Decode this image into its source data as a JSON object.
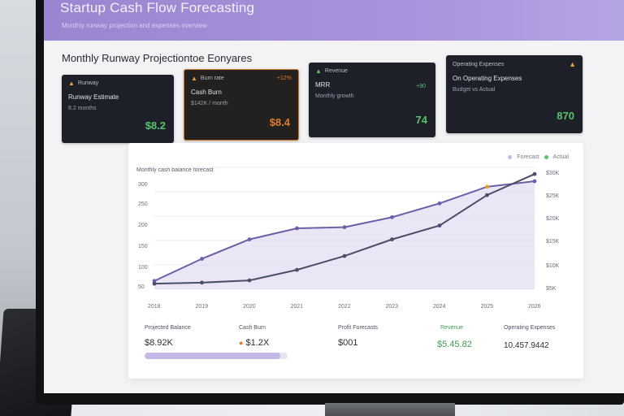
{
  "header": {
    "title": "Startup Cash Flow Forecasting",
    "subtitle": "Monthly runway projection and expenses overview"
  },
  "section": {
    "title": "Monthly Runway Projectiontoe Eonyares"
  },
  "kpis": [
    {
      "head": "Runway",
      "label": "Runway Estimate",
      "sub": "8.2 months",
      "value": "$8.2",
      "delta": "",
      "style": "dark",
      "value_color": "green"
    },
    {
      "head": "Burn rate",
      "label": "Cash Burn",
      "sub": "$142K / month",
      "value": "$8.4",
      "delta": "+12%",
      "style": "orange",
      "value_color": "orange"
    },
    {
      "head": "Revenue",
      "label": "MRR",
      "sub": "Monthly growth",
      "value": "74",
      "delta": "",
      "spark": "+90",
      "style": "dark",
      "value_color": "green"
    },
    {
      "head": "Operating Expenses",
      "label": "On Operating Expenses",
      "sub": "Budget vs Actual",
      "value": "870",
      "delta": "",
      "style": "dark",
      "value_color": "green"
    }
  ],
  "chart_panel": {
    "title": "Monthly cash balance forecast",
    "legend": [
      "Forecast",
      "Actual"
    ],
    "right_ticks": [
      "$30K",
      "$25K",
      "$20K",
      "$15K",
      "$10K",
      "$5K"
    ],
    "left_ticks": [
      "300",
      "250",
      "200",
      "150",
      "100",
      "50"
    ]
  },
  "chart_data": {
    "type": "line",
    "x": [
      "2018",
      "2019",
      "2020",
      "2021",
      "2022",
      "2023",
      "2024",
      "2025",
      "2026"
    ],
    "series": [
      {
        "name": "Forecast",
        "values": [
          55,
          95,
          130,
          150,
          152,
          170,
          195,
          225,
          235
        ]
      },
      {
        "name": "Actual",
        "values": [
          50,
          52,
          56,
          75,
          100,
          130,
          155,
          210,
          248
        ]
      }
    ],
    "ylim": [
      40,
      260
    ],
    "colors": {
      "Forecast": "#6c5fa8",
      "Actual": "#4d4d6a",
      "area": "#d9d1ef",
      "accent": "#e0a21f"
    }
  },
  "footer": [
    {
      "label": "Projected Balance",
      "value": "$8.92K",
      "style": "normal"
    },
    {
      "label": "Cash Burn",
      "value": "$1.2X",
      "style": "orange"
    },
    {
      "label": "Profit Forecasts",
      "value": "$001",
      "style": "normal"
    },
    {
      "label": "Revenue",
      "value": "$5.45.82",
      "style": "green"
    },
    {
      "label": "Operating Expenses",
      "value": "10.457.9442",
      "style": "mixed"
    }
  ],
  "progress": {
    "fraction": 0.95
  }
}
